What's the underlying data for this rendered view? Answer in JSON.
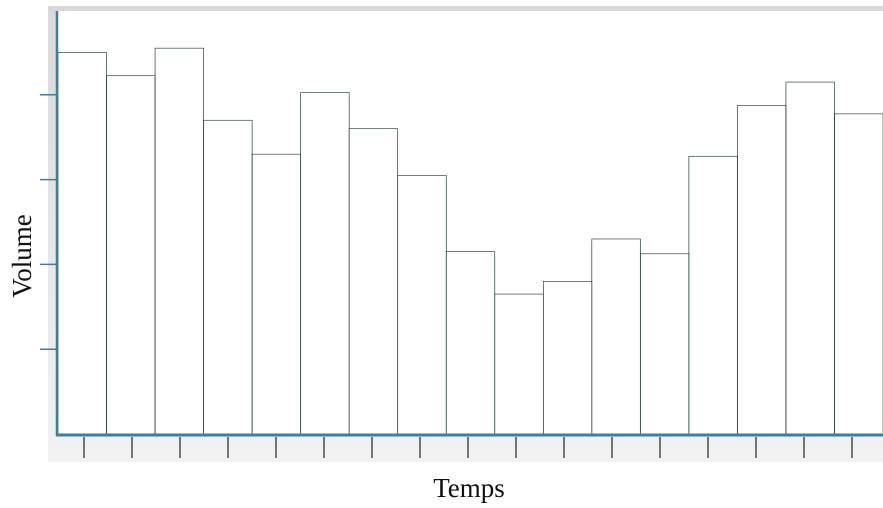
{
  "chart_data": {
    "type": "bar",
    "xlabel": "Temps",
    "ylabel": "Volume",
    "ylim": [
      0,
      100
    ],
    "y_ticks": [
      20,
      40,
      60,
      80
    ],
    "x_tick_count": 17,
    "grid": false,
    "values": [
      90,
      84.5,
      91,
      74,
      66,
      80.5,
      72,
      61,
      43,
      33,
      36,
      46,
      42.5,
      65.5,
      77.5,
      83,
      75.5
    ],
    "bar_texture": "conifer-forest",
    "colors": {
      "axis": "#3d7fa0",
      "sky": "#ffffff",
      "tree_dark": "#16301f",
      "tree_mid": "#24573a",
      "tree_light": "#3f8a5e",
      "separator": "#dfe8e2"
    }
  }
}
